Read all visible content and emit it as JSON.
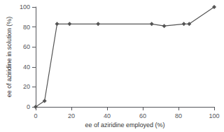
{
  "chart_data": {
    "type": "line",
    "xlabel": "ee of aziridine employed (%)",
    "ylabel": "ee of aziridine in solution (%)",
    "x": [
      0,
      5,
      12,
      19,
      35,
      65,
      72,
      83,
      86,
      100
    ],
    "values": [
      0,
      6,
      83,
      83,
      83,
      83,
      81,
      83,
      83,
      100
    ],
    "color": "#555555",
    "marker": "diamond",
    "xlim": [
      0,
      100
    ],
    "ylim": [
      0,
      100
    ],
    "xticks": [
      0,
      20,
      40,
      60,
      80,
      100
    ],
    "yticks": [
      0,
      20,
      40,
      60,
      80,
      100
    ],
    "grid": false
  }
}
